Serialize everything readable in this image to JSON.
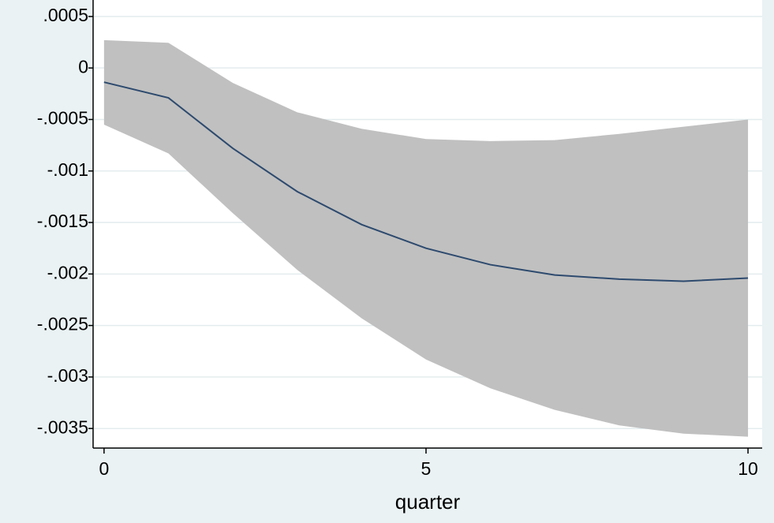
{
  "chart_data": {
    "type": "line",
    "xlabel": "quarter",
    "x": [
      0,
      1,
      2,
      3,
      4,
      5,
      6,
      7,
      8,
      9,
      10
    ],
    "values": [
      -0.000138,
      -0.00029,
      -0.00078,
      -0.0012,
      -0.00152,
      -0.00175,
      -0.00191,
      -0.00201,
      -0.00205,
      -0.00207,
      -0.00204
    ],
    "color": "#2d4a6e",
    "ci_upper": [
      0.00027,
      0.000245,
      -0.000145,
      -0.00043,
      -0.00059,
      -0.00069,
      -0.00071,
      -0.0007,
      -0.00064,
      -0.00057,
      -0.0005
    ],
    "ci_lower": [
      -0.00055,
      -0.00083,
      -0.00141,
      -0.00196,
      -0.00243,
      -0.00283,
      -0.00311,
      -0.00332,
      -0.00347,
      -0.00355,
      -0.00358
    ],
    "ci_color": "#c0c0c0",
    "xlim": [
      -0.17,
      10.22
    ],
    "ylim": [
      -0.00369,
      0.00066
    ],
    "xticks": [
      0,
      5,
      10
    ],
    "yticks": [
      {
        "value": 0.0005,
        "label": ".0005"
      },
      0,
      {
        "value": -0.0005,
        "label": "-.0005"
      },
      {
        "value": -0.001,
        "label": "-.001"
      },
      {
        "value": -0.0015,
        "label": "-.0015"
      },
      {
        "value": -0.002,
        "label": "-.002"
      },
      {
        "value": -0.0025,
        "label": "-.0025"
      },
      {
        "value": -0.003,
        "label": "-.003"
      },
      {
        "value": -0.0035,
        "label": "-.0035"
      }
    ],
    "grid": true
  }
}
